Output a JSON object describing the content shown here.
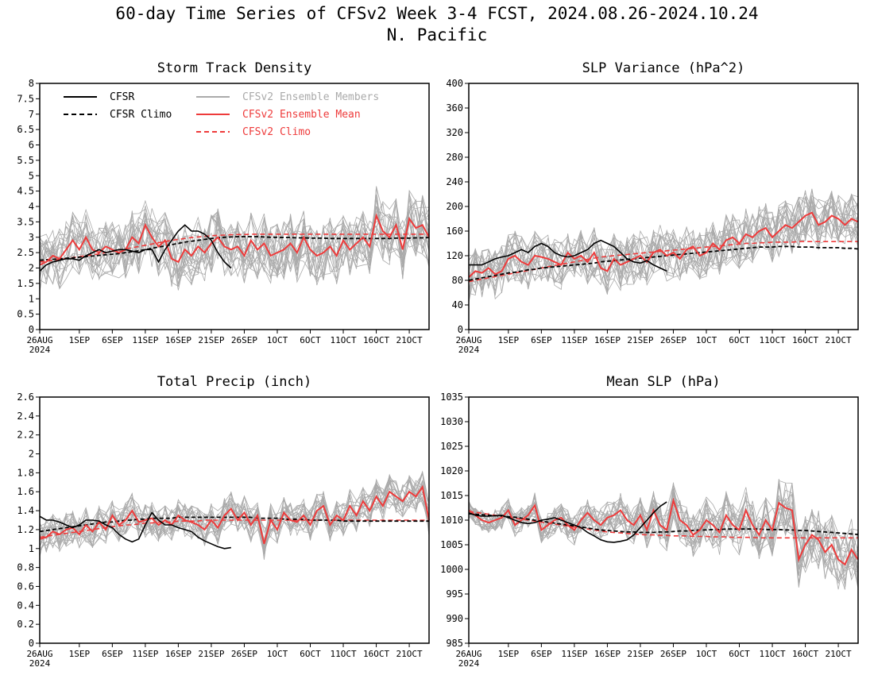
{
  "title": "60-day Time Series of CFSv2 Week 3-4 FCST, 2024.08.26-2024.10.24",
  "subtitle": "N. Pacific",
  "legend": {
    "cfsr": "CFSR",
    "cfsr_climo": "CFSR Climo",
    "members": "CFSv2 Ensemble Members",
    "mean": "CFSv2 Ensemble Mean",
    "cfsv2_climo": "CFSv2 Climo"
  },
  "colors": {
    "observed": "#000000",
    "members": "#aaaaaa",
    "forecast": "#ee3b3b"
  },
  "x_axis": {
    "ticks": [
      {
        "day": 0,
        "label": "26AUG"
      },
      {
        "day": 6,
        "label": "1SEP"
      },
      {
        "day": 11,
        "label": "6SEP"
      },
      {
        "day": 16,
        "label": "11SEP"
      },
      {
        "day": 21,
        "label": "16SEP"
      },
      {
        "day": 26,
        "label": "21SEP"
      },
      {
        "day": 31,
        "label": "26SEP"
      },
      {
        "day": 36,
        "label": "1OCT"
      },
      {
        "day": 41,
        "label": "6OCT"
      },
      {
        "day": 46,
        "label": "11OCT"
      },
      {
        "day": 51,
        "label": "16OCT"
      },
      {
        "day": 56,
        "label": "21OCT"
      }
    ],
    "year_label": "2024",
    "days": 60
  },
  "chart_data": [
    {
      "type": "line",
      "title": "Storm Track Density",
      "ylim": [
        0,
        8
      ],
      "yticks": [
        0,
        0.5,
        1,
        1.5,
        2,
        2.5,
        3,
        3.5,
        4,
        4.5,
        5,
        5.5,
        6,
        6.5,
        7,
        7.5,
        8
      ],
      "ytick_labels": [
        "0",
        "0.5",
        "1",
        "1.5",
        "2",
        "2.5",
        "3",
        "3.5",
        "4",
        "4.5",
        "5",
        "5.5",
        "6",
        "6.5",
        "7",
        "7.5",
        "8"
      ],
      "show_legend": true,
      "cfsr": [
        1.9,
        2.1,
        2.2,
        2.25,
        2.3,
        2.3,
        2.25,
        2.4,
        2.5,
        2.6,
        2.5,
        2.55,
        2.6,
        2.6,
        2.55,
        2.5,
        2.6,
        2.6,
        2.2,
        2.6,
        2.9,
        3.2,
        3.4,
        3.2,
        3.2,
        3.1,
        2.9,
        2.5,
        2.2,
        2.0
      ],
      "cfsr_climo": [
        2.25,
        2.27,
        2.28,
        2.3,
        2.32,
        2.33,
        2.35,
        2.37,
        2.39,
        2.41,
        2.43,
        2.45,
        2.47,
        2.5,
        2.53,
        2.56,
        2.6,
        2.64,
        2.68,
        2.72,
        2.76,
        2.8,
        2.84,
        2.87,
        2.9,
        2.93,
        2.96,
        2.98,
        3.0,
        3.01,
        3.02,
        3.02,
        3.02,
        3.02,
        3.01,
        3.0,
        3.0,
        2.99,
        2.99,
        2.98,
        2.98,
        2.97,
        2.97,
        2.97,
        2.96,
        2.96,
        2.96,
        2.96,
        2.96,
        2.96,
        2.96,
        2.96,
        2.96,
        2.96,
        2.97,
        2.97,
        2.97,
        2.98,
        2.98,
        2.99
      ],
      "cfsv2_climo": [
        2.2,
        2.22,
        2.25,
        2.28,
        2.31,
        2.34,
        2.37,
        2.4,
        2.43,
        2.46,
        2.5,
        2.54,
        2.58,
        2.62,
        2.66,
        2.7,
        2.74,
        2.78,
        2.82,
        2.86,
        2.9,
        2.93,
        2.96,
        2.99,
        3.01,
        3.03,
        3.05,
        3.06,
        3.07,
        3.08,
        3.09,
        3.09,
        3.1,
        3.1,
        3.1,
        3.1,
        3.1,
        3.1,
        3.1,
        3.1,
        3.1,
        3.1,
        3.1,
        3.1,
        3.1,
        3.1,
        3.1,
        3.1,
        3.1,
        3.1,
        3.1,
        3.1,
        3.1,
        3.1,
        3.1,
        3.1,
        3.1,
        3.1,
        3.1,
        3.1
      ],
      "ens_mean": [
        2.1,
        2.2,
        2.4,
        2.3,
        2.6,
        2.9,
        2.6,
        3.0,
        2.6,
        2.5,
        2.7,
        2.6,
        2.5,
        2.6,
        3.0,
        2.8,
        3.4,
        3.0,
        2.7,
        2.9,
        2.3,
        2.2,
        2.6,
        2.4,
        2.7,
        2.5,
        2.8,
        3.0,
        2.7,
        2.6,
        2.7,
        2.4,
        2.9,
        2.6,
        2.8,
        2.4,
        2.5,
        2.6,
        2.8,
        2.5,
        3.0,
        2.6,
        2.4,
        2.5,
        2.7,
        2.4,
        2.9,
        2.6,
        2.8,
        3.0,
        2.7,
        3.7,
        3.2,
        3.0,
        3.4,
        2.6,
        3.6,
        3.3,
        3.4,
        3.0
      ],
      "spread": 0.75
    },
    {
      "type": "line",
      "title": "SLP Variance (hPa^2)",
      "ylim": [
        0,
        400
      ],
      "yticks": [
        0,
        40,
        80,
        120,
        160,
        200,
        240,
        280,
        320,
        360,
        400
      ],
      "ytick_labels": [
        "0",
        "40",
        "80",
        "120",
        "160",
        "200",
        "240",
        "280",
        "320",
        "360",
        "400"
      ],
      "show_legend": false,
      "cfsr": [
        105,
        105,
        105,
        110,
        115,
        118,
        120,
        125,
        130,
        125,
        135,
        140,
        135,
        125,
        120,
        118,
        120,
        125,
        130,
        140,
        145,
        140,
        135,
        125,
        115,
        110,
        108,
        112,
        105,
        100,
        95
      ],
      "cfsr_climo": [
        80,
        82,
        84,
        86,
        88,
        90,
        92,
        93,
        95,
        97,
        98,
        100,
        101,
        102,
        103,
        104,
        105,
        106,
        107,
        108,
        110,
        111,
        112,
        113,
        114,
        115,
        116,
        117,
        118,
        119,
        120,
        121,
        122,
        123,
        124,
        125,
        126,
        127,
        128,
        129,
        130,
        131,
        132,
        133,
        134,
        134,
        134,
        135,
        135,
        135,
        134,
        134,
        134,
        133,
        133,
        133,
        133,
        132,
        132,
        131
      ],
      "cfsv2_climo": [
        78,
        80,
        82,
        84,
        86,
        88,
        90,
        92,
        94,
        96,
        98,
        100,
        102,
        104,
        106,
        108,
        110,
        112,
        114,
        116,
        118,
        119,
        120,
        121,
        122,
        123,
        124,
        125,
        126,
        127,
        128,
        129,
        130,
        131,
        132,
        133,
        134,
        135,
        136,
        137,
        138,
        139,
        140,
        140,
        141,
        141,
        142,
        142,
        142,
        142,
        143,
        143,
        143,
        143,
        143,
        143,
        143,
        143,
        143,
        143
      ],
      "ens_mean": [
        85,
        95,
        92,
        100,
        90,
        95,
        115,
        120,
        110,
        105,
        120,
        118,
        115,
        110,
        105,
        125,
        115,
        120,
        110,
        125,
        100,
        95,
        115,
        105,
        110,
        115,
        120,
        110,
        125,
        130,
        120,
        125,
        115,
        130,
        135,
        120,
        125,
        140,
        130,
        145,
        150,
        140,
        155,
        150,
        160,
        165,
        150,
        160,
        170,
        165,
        175,
        185,
        190,
        170,
        175,
        185,
        180,
        170,
        180,
        175
      ],
      "spread": 32
    },
    {
      "type": "line",
      "title": "Total Precip (inch)",
      "ylim": [
        0,
        2.6
      ],
      "yticks": [
        0,
        0.2,
        0.4,
        0.6,
        0.8,
        1,
        1.2,
        1.4,
        1.6,
        1.8,
        2,
        2.2,
        2.4,
        2.6
      ],
      "ytick_labels": [
        "0",
        "0.2",
        "0.4",
        "0.6",
        "0.8",
        "1",
        "1.2",
        "1.4",
        "1.6",
        "1.8",
        "2",
        "2.2",
        "2.4",
        "2.6"
      ],
      "show_legend": false,
      "cfsr": [
        1.34,
        1.3,
        1.3,
        1.28,
        1.25,
        1.22,
        1.25,
        1.3,
        1.3,
        1.29,
        1.25,
        1.22,
        1.15,
        1.1,
        1.07,
        1.1,
        1.25,
        1.38,
        1.3,
        1.25,
        1.25,
        1.22,
        1.2,
        1.18,
        1.12,
        1.08,
        1.05,
        1.02,
        1.0,
        1.01
      ],
      "cfsr_climo": [
        1.18,
        1.19,
        1.2,
        1.21,
        1.22,
        1.23,
        1.24,
        1.25,
        1.26,
        1.27,
        1.28,
        1.28,
        1.29,
        1.3,
        1.3,
        1.31,
        1.31,
        1.32,
        1.32,
        1.32,
        1.32,
        1.33,
        1.33,
        1.33,
        1.33,
        1.33,
        1.33,
        1.33,
        1.33,
        1.33,
        1.33,
        1.33,
        1.33,
        1.32,
        1.32,
        1.32,
        1.32,
        1.31,
        1.31,
        1.31,
        1.31,
        1.3,
        1.3,
        1.3,
        1.3,
        1.3,
        1.29,
        1.29,
        1.29,
        1.29,
        1.29,
        1.29,
        1.29,
        1.29,
        1.29,
        1.29,
        1.29,
        1.29,
        1.29,
        1.29
      ],
      "cfsv2_climo": [
        1.12,
        1.13,
        1.14,
        1.15,
        1.16,
        1.17,
        1.18,
        1.19,
        1.2,
        1.21,
        1.22,
        1.23,
        1.24,
        1.25,
        1.25,
        1.26,
        1.27,
        1.27,
        1.28,
        1.28,
        1.28,
        1.29,
        1.29,
        1.29,
        1.29,
        1.3,
        1.3,
        1.3,
        1.3,
        1.3,
        1.3,
        1.3,
        1.3,
        1.3,
        1.3,
        1.3,
        1.3,
        1.3,
        1.3,
        1.3,
        1.3,
        1.3,
        1.3,
        1.3,
        1.3,
        1.3,
        1.3,
        1.3,
        1.3,
        1.3,
        1.3,
        1.3,
        1.3,
        1.3,
        1.3,
        1.3,
        1.3,
        1.3,
        1.3,
        1.3
      ],
      "ens_mean": [
        1.1,
        1.12,
        1.18,
        1.15,
        1.2,
        1.22,
        1.15,
        1.25,
        1.18,
        1.28,
        1.2,
        1.35,
        1.25,
        1.3,
        1.4,
        1.28,
        1.3,
        1.32,
        1.25,
        1.3,
        1.25,
        1.35,
        1.3,
        1.28,
        1.25,
        1.2,
        1.3,
        1.22,
        1.35,
        1.42,
        1.3,
        1.38,
        1.25,
        1.35,
        1.05,
        1.3,
        1.2,
        1.38,
        1.3,
        1.28,
        1.35,
        1.25,
        1.4,
        1.45,
        1.25,
        1.35,
        1.3,
        1.45,
        1.35,
        1.5,
        1.4,
        1.55,
        1.45,
        1.6,
        1.55,
        1.5,
        1.6,
        1.55,
        1.65,
        1.3
      ],
      "spread": 0.14
    },
    {
      "type": "line",
      "title": "Mean SLP (hPa)",
      "ylim": [
        985,
        1035
      ],
      "yticks": [
        985,
        990,
        995,
        1000,
        1005,
        1010,
        1015,
        1020,
        1025,
        1030,
        1035
      ],
      "ytick_labels": [
        "985",
        "990",
        "995",
        "1000",
        "1005",
        "1010",
        "1015",
        "1020",
        "1025",
        "1030",
        "1035"
      ],
      "show_legend": false,
      "cfsr": [
        1011.5,
        1011,
        1010.8,
        1010.8,
        1010.9,
        1011,
        1010.5,
        1010,
        1009.5,
        1009.3,
        1009.5,
        1010,
        1010.2,
        1010.5,
        1010,
        1009.5,
        1009,
        1008.5,
        1007.5,
        1006.8,
        1006,
        1005.6,
        1005.5,
        1005.7,
        1006,
        1007,
        1008.5,
        1010,
        1011.5,
        1012.8,
        1013.7
      ],
      "cfsr_climo": [
        1011.3,
        1011.2,
        1011.1,
        1011.0,
        1010.9,
        1010.8,
        1010.7,
        1010.6,
        1010.4,
        1010.2,
        1010.0,
        1009.8,
        1009.6,
        1009.4,
        1009.2,
        1009.0,
        1008.8,
        1008.6,
        1008.4,
        1008.2,
        1008.0,
        1007.9,
        1007.8,
        1007.7,
        1007.6,
        1007.6,
        1007.5,
        1007.5,
        1007.5,
        1007.6,
        1007.6,
        1007.7,
        1007.8,
        1007.8,
        1007.9,
        1008.0,
        1008.0,
        1008.1,
        1008.1,
        1008.2,
        1008.2,
        1008.2,
        1008.2,
        1008.2,
        1008.2,
        1008.1,
        1008.1,
        1008.1,
        1008.0,
        1008.0,
        1007.9,
        1007.9,
        1007.8,
        1007.7,
        1007.6,
        1007.5,
        1007.4,
        1007.3,
        1007.2,
        1007.1
      ],
      "cfsv2_climo": [
        1011.8,
        1011.6,
        1011.4,
        1011.2,
        1011.0,
        1010.8,
        1010.6,
        1010.4,
        1010.2,
        1010.0,
        1009.8,
        1009.6,
        1009.4,
        1009.2,
        1009.0,
        1008.8,
        1008.6,
        1008.4,
        1008.2,
        1008.0,
        1007.8,
        1007.6,
        1007.5,
        1007.4,
        1007.3,
        1007.2,
        1007.1,
        1007.0,
        1007.0,
        1006.9,
        1006.9,
        1006.8,
        1006.8,
        1006.8,
        1006.7,
        1006.7,
        1006.7,
        1006.6,
        1006.6,
        1006.6,
        1006.5,
        1006.5,
        1006.5,
        1006.5,
        1006.4,
        1006.4,
        1006.4,
        1006.4,
        1006.4,
        1006.4,
        1006.4,
        1006.4,
        1006.4,
        1006.4,
        1006.4,
        1006.4,
        1006.4,
        1006.4,
        1006.4,
        1006.4
      ],
      "ens_mean": [
        1012,
        1011,
        1010,
        1009.5,
        1010,
        1010.5,
        1012,
        1009,
        1010,
        1011,
        1013,
        1008,
        1009,
        1010,
        1010.5,
        1009,
        1008,
        1010,
        1011.5,
        1010,
        1009,
        1010.5,
        1011,
        1012,
        1010,
        1009,
        1011,
        1008,
        1012,
        1009,
        1008,
        1014,
        1010,
        1009,
        1007,
        1008,
        1010,
        1009,
        1007.5,
        1011,
        1009,
        1008,
        1012,
        1009,
        1007,
        1010,
        1008,
        1013.5,
        1012.5,
        1012,
        1002,
        1005,
        1007,
        1006,
        1003.5,
        1005,
        1002,
        1001,
        1004,
        1002
      ]
    }
  ]
}
